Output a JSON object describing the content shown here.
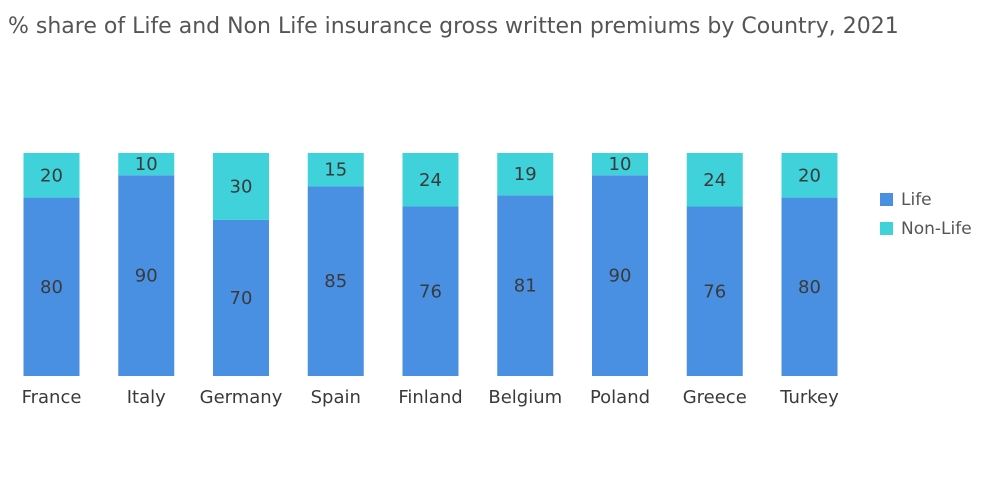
{
  "chart_data": {
    "type": "bar",
    "stacked": true,
    "title": "% share of Life and Non Life insurance gross written premiums by Country, 2021",
    "categories": [
      "France",
      "Italy",
      "Germany",
      "Spain",
      "Finland",
      "Belgium",
      "Poland",
      "Greece",
      "Turkey"
    ],
    "series": [
      {
        "name": "Life",
        "values": [
          80,
          90,
          70,
          85,
          76,
          81,
          90,
          76,
          80
        ],
        "color": "#4a90e2"
      },
      {
        "name": "Non-Life",
        "values": [
          20,
          10,
          30,
          15,
          24,
          19,
          10,
          24,
          20
        ],
        "color": "#3fd2da"
      }
    ],
    "ylim": [
      0,
      100
    ],
    "grid": false,
    "legend": "right"
  }
}
